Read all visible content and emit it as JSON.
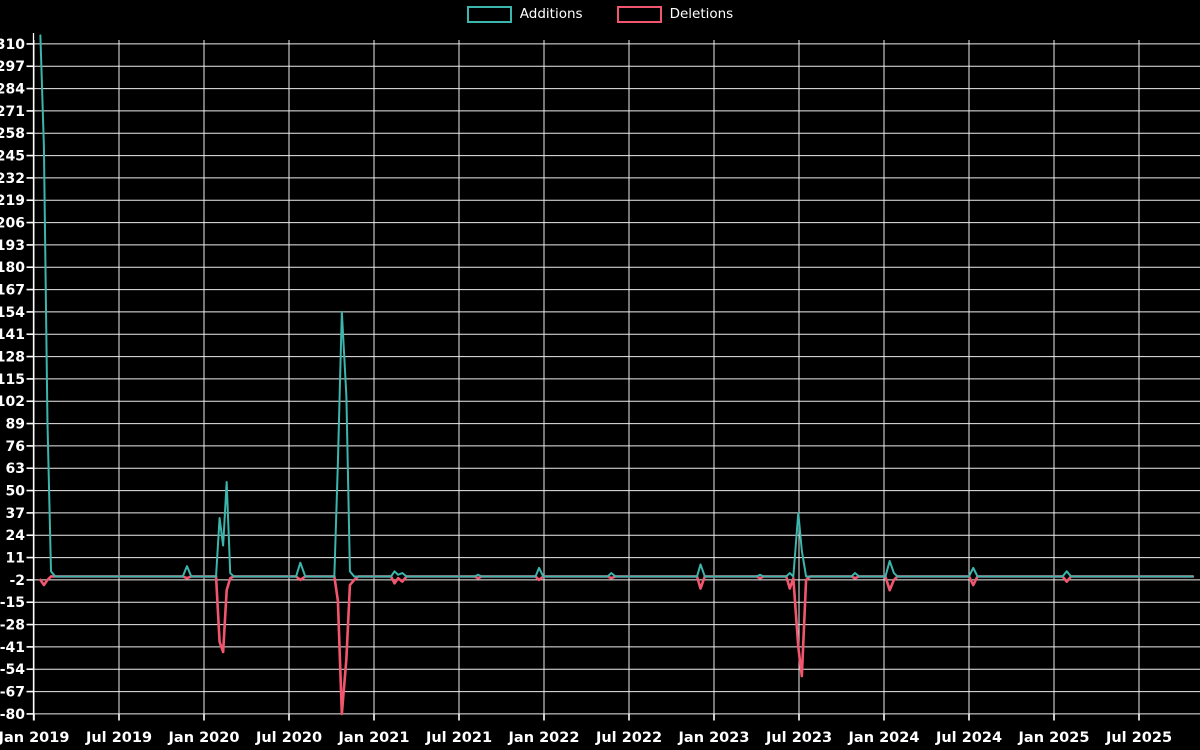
{
  "colors": {
    "background": "#000000",
    "grid": "#ececec",
    "axis": "#ffffff",
    "text": "#ffffff",
    "additions": "#3cb5ad",
    "deletions": "#f2566e"
  },
  "chart_data": {
    "type": "line",
    "title": "",
    "legend_position": "top-center",
    "grid": true,
    "series": [
      {
        "name": "Additions",
        "color": "#3cb5ad"
      },
      {
        "name": "Deletions",
        "color": "#f2566e"
      }
    ],
    "x_axis": {
      "ticks": [
        "Jan 2019",
        "Jul 2019",
        "Jan 2020",
        "Jul 2020",
        "Jan 2021",
        "Jul 2021",
        "Jan 2022",
        "Jul 2022",
        "Jan 2023",
        "Jul 2023",
        "Jan 2024",
        "Jul 2024",
        "Jan 2025",
        "Jul 2025"
      ]
    },
    "y_axis": {
      "ticks": [
        310,
        297,
        284,
        271,
        258,
        245,
        232,
        219,
        206,
        193,
        180,
        167,
        154,
        141,
        128,
        115,
        102,
        89,
        76,
        63,
        50,
        37,
        24,
        11,
        -2,
        -15,
        -28,
        -41,
        -54,
        -67,
        -80
      ],
      "min": -80,
      "max": 310,
      "step": 13
    },
    "x_encoding": "m = months after Jan 2019 (fractional, data sampled roughly weekly)",
    "points": [
      {
        "m": 0.45,
        "additions": 315,
        "deletions": -2
      },
      {
        "m": 0.7,
        "additions": 250,
        "deletions": -5
      },
      {
        "m": 0.95,
        "additions": 90,
        "deletions": -2
      },
      {
        "m": 1.2,
        "additions": 3,
        "deletions": 0
      },
      {
        "m": 1.5,
        "additions": 0,
        "deletions": 0
      },
      {
        "m": 10.5,
        "additions": 0,
        "deletions": 0
      },
      {
        "m": 10.8,
        "additions": 6,
        "deletions": -1
      },
      {
        "m": 11.1,
        "additions": 0,
        "deletions": 0
      },
      {
        "m": 12.85,
        "additions": 0,
        "deletions": 0
      },
      {
        "m": 13.1,
        "additions": 34,
        "deletions": -38
      },
      {
        "m": 13.35,
        "additions": 18,
        "deletions": -44
      },
      {
        "m": 13.6,
        "additions": 55,
        "deletions": -8
      },
      {
        "m": 13.85,
        "additions": 2,
        "deletions": -1
      },
      {
        "m": 14.1,
        "additions": 0,
        "deletions": 0
      },
      {
        "m": 18.5,
        "additions": 0,
        "deletions": 0
      },
      {
        "m": 18.8,
        "additions": 8,
        "deletions": -2
      },
      {
        "m": 19.15,
        "additions": 0,
        "deletions": 0
      },
      {
        "m": 21.2,
        "additions": 0,
        "deletions": 0
      },
      {
        "m": 21.45,
        "additions": 66,
        "deletions": -14
      },
      {
        "m": 21.73,
        "additions": 154,
        "deletions": -80
      },
      {
        "m": 22.05,
        "additions": 105,
        "deletions": -48
      },
      {
        "m": 22.3,
        "additions": 3,
        "deletions": -5
      },
      {
        "m": 22.6,
        "additions": 0,
        "deletions": -2
      },
      {
        "m": 22.9,
        "additions": 0,
        "deletions": 0
      },
      {
        "m": 25.2,
        "additions": 0,
        "deletions": 0
      },
      {
        "m": 25.45,
        "additions": 3,
        "deletions": -4
      },
      {
        "m": 25.7,
        "additions": 1,
        "deletions": -1
      },
      {
        "m": 26.0,
        "additions": 2,
        "deletions": -3
      },
      {
        "m": 26.3,
        "additions": 0,
        "deletions": 0
      },
      {
        "m": 31.1,
        "additions": 0,
        "deletions": 0
      },
      {
        "m": 31.35,
        "additions": 1,
        "deletions": -1
      },
      {
        "m": 31.6,
        "additions": 0,
        "deletions": 0
      },
      {
        "m": 35.4,
        "additions": 0,
        "deletions": 0
      },
      {
        "m": 35.65,
        "additions": 5,
        "deletions": -2
      },
      {
        "m": 35.95,
        "additions": 0,
        "deletions": 0
      },
      {
        "m": 40.5,
        "additions": 0,
        "deletions": 0
      },
      {
        "m": 40.75,
        "additions": 2,
        "deletions": -1
      },
      {
        "m": 41.05,
        "additions": 0,
        "deletions": 0
      },
      {
        "m": 46.8,
        "additions": 0,
        "deletions": 0
      },
      {
        "m": 47.05,
        "additions": 7,
        "deletions": -7
      },
      {
        "m": 47.35,
        "additions": 0,
        "deletions": 0
      },
      {
        "m": 51.0,
        "additions": 0,
        "deletions": 0
      },
      {
        "m": 51.25,
        "additions": 1,
        "deletions": -1
      },
      {
        "m": 51.5,
        "additions": 0,
        "deletions": 0
      },
      {
        "m": 53.1,
        "additions": 0,
        "deletions": 0
      },
      {
        "m": 53.35,
        "additions": 2,
        "deletions": -7
      },
      {
        "m": 53.6,
        "additions": 0,
        "deletions": -1
      },
      {
        "m": 53.95,
        "additions": 37,
        "deletions": -41
      },
      {
        "m": 54.2,
        "additions": 15,
        "deletions": -58
      },
      {
        "m": 54.5,
        "additions": 0,
        "deletions": -2
      },
      {
        "m": 54.8,
        "additions": 0,
        "deletions": 0
      },
      {
        "m": 57.7,
        "additions": 0,
        "deletions": 0
      },
      {
        "m": 57.95,
        "additions": 2,
        "deletions": -1
      },
      {
        "m": 58.25,
        "additions": 0,
        "deletions": 0
      },
      {
        "m": 60.1,
        "additions": 0,
        "deletions": 0
      },
      {
        "m": 60.4,
        "additions": 9,
        "deletions": -8
      },
      {
        "m": 60.7,
        "additions": 2,
        "deletions": -2
      },
      {
        "m": 60.95,
        "additions": 0,
        "deletions": 0
      },
      {
        "m": 66.0,
        "additions": 0,
        "deletions": 0
      },
      {
        "m": 66.3,
        "additions": 5,
        "deletions": -5
      },
      {
        "m": 66.6,
        "additions": 0,
        "deletions": 0
      },
      {
        "m": 72.6,
        "additions": 0,
        "deletions": 0
      },
      {
        "m": 72.9,
        "additions": 3,
        "deletions": -3
      },
      {
        "m": 73.2,
        "additions": 0,
        "deletions": 0
      },
      {
        "m": 81.8,
        "additions": 0,
        "deletions": 0
      }
    ]
  }
}
